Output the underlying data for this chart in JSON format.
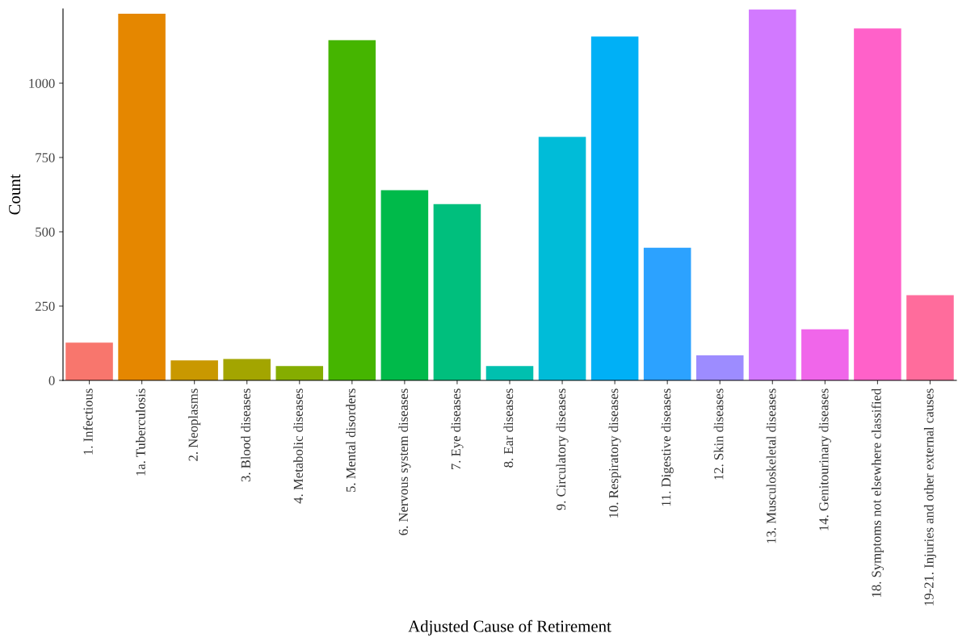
{
  "chart_data": {
    "type": "bar",
    "xlabel": "Adjusted Cause of Retirement",
    "ylabel": "Count",
    "categories": [
      "1. Infectious",
      "1a. Tuberculosis",
      "2. Neoplasms",
      "3. Blood diseases",
      "4. Metabolic diseases",
      "5. Mental disorders",
      "6. Nervous system diseases",
      "7. Eye diseases",
      "8. Ear diseases",
      "9. Circulatory diseases",
      "10. Respiratory diseases",
      "11. Digestive diseases",
      "12. Skin diseases",
      "13. Musculoskeletal diseases",
      "14. Genitourinary diseases",
      "18. Symptoms not elsewhere classified",
      "19-21. Injuries and other external causes"
    ],
    "values": [
      127,
      1234,
      67,
      72,
      48,
      1145,
      640,
      593,
      48,
      819,
      1157,
      446,
      84,
      1248,
      172,
      1184,
      287
    ],
    "colors": [
      "#f8766d",
      "#e58700",
      "#c99800",
      "#a3a500",
      "#85ad00",
      "#45b500",
      "#00ba4a",
      "#00bf7d",
      "#00c0af",
      "#00bcd8",
      "#00b0f6",
      "#2ca2ff",
      "#9d8cff",
      "#d279ff",
      "#f066ea",
      "#ff61c9",
      "#ff6c9c"
    ],
    "ylim": [
      0,
      1250
    ],
    "yticks": [
      0,
      250,
      500,
      750,
      1000
    ],
    "grid": false,
    "legend": false
  }
}
